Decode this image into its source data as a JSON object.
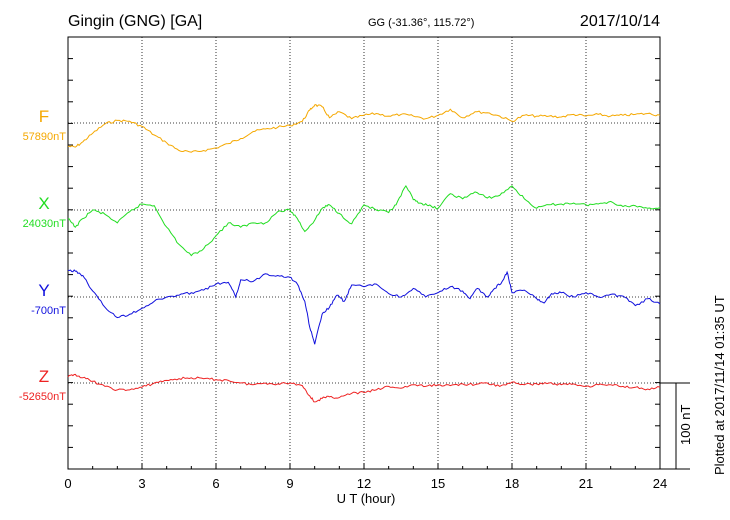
{
  "header": {
    "station": "Gingin (GNG)  [GA]",
    "coords": "GG (-31.36°, 115.72°)",
    "date": "2017/10/14"
  },
  "footer": {
    "plotted": "Plotted at 2017/11/14 01:35 UT"
  },
  "chart_data": {
    "type": "line",
    "xlabel": "U T (hour)",
    "xlim": [
      0,
      24
    ],
    "xticks": [
      0,
      3,
      6,
      9,
      12,
      15,
      18,
      21,
      24
    ],
    "xtick_labels": [
      "0",
      "3",
      "6",
      "9",
      "12",
      "15",
      "18",
      "21",
      "24"
    ],
    "grid": true,
    "scale_bar": {
      "label": "100 nT",
      "nT": 100
    },
    "series": [
      {
        "name": "F",
        "baseline_label": "57890nT",
        "baseline": 57890,
        "color": "#f5a800",
        "x": [
          0,
          0.3,
          0.6,
          1,
          1.5,
          2,
          2.5,
          3,
          3.5,
          4,
          4.5,
          5,
          5.5,
          6,
          6.5,
          7,
          7.5,
          8,
          8.5,
          9,
          9.5,
          9.8,
          10,
          10.3,
          10.6,
          11,
          11.5,
          12,
          12.5,
          13,
          13.5,
          14,
          14.5,
          15,
          15.5,
          16,
          16.5,
          17,
          17.5,
          18,
          18.5,
          19,
          19.5,
          20,
          20.5,
          21,
          21.5,
          22,
          22.5,
          23,
          23.5,
          24
        ],
        "y": [
          57863,
          57862,
          57868,
          57878,
          57889,
          57893,
          57892,
          57886,
          57876,
          57867,
          57858,
          57856,
          57858,
          57861,
          57866,
          57872,
          57880,
          57883,
          57885,
          57887,
          57892,
          57905,
          57911,
          57909,
          57896,
          57903,
          57895,
          57899,
          57901,
          57898,
          57900,
          57898,
          57895,
          57899,
          57906,
          57896,
          57903,
          57902,
          57898,
          57892,
          57899,
          57898,
          57898,
          57897,
          57900,
          57898,
          57900,
          57898,
          57899,
          57900,
          57901,
          57899
        ]
      },
      {
        "name": "X",
        "baseline_label": "24030nT",
        "baseline": 24030,
        "color": "#22dd22",
        "x": [
          0,
          0.3,
          0.6,
          1,
          1.5,
          2,
          2.5,
          3,
          3.5,
          4,
          4.5,
          5,
          5.5,
          6,
          6.5,
          7,
          7.5,
          8,
          8.5,
          9,
          9.3,
          9.6,
          10,
          10.3,
          10.6,
          11,
          11.5,
          12,
          12.5,
          13,
          13.3,
          13.7,
          14,
          14.3,
          14.6,
          15,
          15.5,
          16,
          16.5,
          17,
          17.5,
          18,
          18.5,
          19,
          19.5,
          20,
          20.5,
          21,
          21.5,
          22,
          22.5,
          23,
          23.5,
          24
        ],
        "y": [
          24020,
          24010,
          24020,
          24030,
          24025,
          24015,
          24028,
          24037,
          24035,
          24010,
          23990,
          23977,
          23985,
          24000,
          24015,
          24010,
          24015,
          24015,
          24028,
          24030,
          24020,
          24005,
          24018,
          24032,
          24036,
          24026,
          24014,
          24036,
          24030,
          24027,
          24036,
          24058,
          24042,
          24038,
          24035,
          24032,
          24049,
          24043,
          24051,
          24044,
          24047,
          24058,
          24043,
          24032,
          24036,
          24037,
          24038,
          24036,
          24037,
          24040,
          24034,
          24035,
          24032,
          24033
        ]
      },
      {
        "name": "Y",
        "baseline_label": "-700nT",
        "baseline": -700,
        "color": "#1010dd",
        "x": [
          0,
          0.3,
          0.6,
          1,
          1.5,
          2,
          2.5,
          3,
          3.5,
          4,
          4.5,
          5,
          5.5,
          6,
          6.5,
          6.8,
          7,
          7.5,
          8,
          8.5,
          9,
          9.3,
          9.6,
          9.8,
          10,
          10.3,
          10.6,
          10.9,
          11.2,
          11.5,
          12,
          12.5,
          13,
          13.5,
          14,
          14.5,
          15,
          15.5,
          16,
          16.3,
          16.6,
          17,
          17.3,
          17.6,
          17.8,
          18,
          18.5,
          19,
          19.3,
          19.6,
          20,
          20.5,
          21,
          21.5,
          22,
          22.5,
          23,
          23.5,
          24
        ],
        "y": [
          -669,
          -670,
          -675,
          -693,
          -712,
          -724,
          -720,
          -713,
          -705,
          -700,
          -698,
          -695,
          -692,
          -685,
          -683,
          -700,
          -680,
          -682,
          -673,
          -675,
          -677,
          -685,
          -705,
          -735,
          -755,
          -720,
          -712,
          -698,
          -705,
          -686,
          -688,
          -685,
          -696,
          -700,
          -690,
          -700,
          -695,
          -688,
          -693,
          -702,
          -690,
          -700,
          -690,
          -682,
          -671,
          -695,
          -692,
          -702,
          -707,
          -696,
          -695,
          -700,
          -695,
          -700,
          -697,
          -699,
          -710,
          -702,
          -708
        ]
      },
      {
        "name": "Z",
        "baseline_label": "-52650nT",
        "baseline": -52650,
        "color": "#ee2222",
        "x": [
          0,
          0.3,
          0.6,
          1,
          1.5,
          2,
          2.5,
          3,
          3.5,
          4,
          4.5,
          5,
          5.5,
          6,
          6.5,
          7,
          7.5,
          8,
          8.5,
          9,
          9.5,
          9.8,
          10,
          10.3,
          10.6,
          11,
          11.5,
          12,
          12.5,
          13,
          13.5,
          14,
          14.5,
          15,
          15.5,
          16,
          16.5,
          17,
          17.5,
          18,
          18.5,
          19,
          19.5,
          20,
          20.5,
          21,
          21.5,
          22,
          22.5,
          23,
          23.5,
          24
        ],
        "y": [
          -52643,
          -52640,
          -52644,
          -52648,
          -52654,
          -52658,
          -52658,
          -52655,
          -52650,
          -52647,
          -52645,
          -52644,
          -52645,
          -52646,
          -52647,
          -52650,
          -52652,
          -52650,
          -52651,
          -52650,
          -52653,
          -52665,
          -52672,
          -52668,
          -52666,
          -52667,
          -52662,
          -52661,
          -52658,
          -52654,
          -52656,
          -52652,
          -52654,
          -52652,
          -52653,
          -52651,
          -52652,
          -52650,
          -52654,
          -52649,
          -52652,
          -52651,
          -52650,
          -52652,
          -52651,
          -52654,
          -52652,
          -52652,
          -52654,
          -52655,
          -52657,
          -52655
        ]
      }
    ]
  }
}
